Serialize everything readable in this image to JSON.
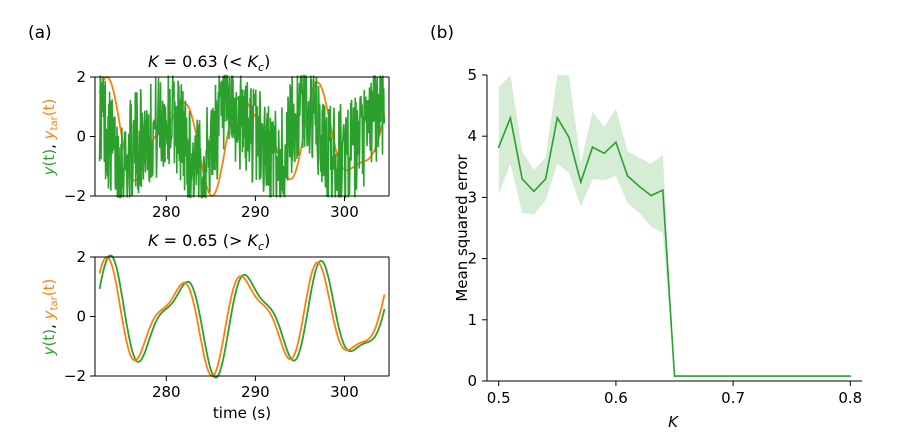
{
  "colors": {
    "green": "#2ca02c",
    "orange": "#ff7f0e",
    "band": "#2ca02c"
  },
  "panel_labels": {
    "a": "(a)",
    "b": "(b)"
  },
  "chart_data": [
    {
      "id": "a-top",
      "type": "line",
      "title": {
        "k_symbol": "K",
        "rest": " = 0.63 (< ",
        "kc_symbol": "K",
        "kc_sub": "c",
        "close": ")"
      },
      "ylabel": {
        "y": "y",
        "t1": "(t)",
        "sep": ", ",
        "ytar": "y",
        "tar_sub": "tar",
        "t2": "(t)"
      },
      "xlim": [
        272,
        305
      ],
      "ylim": [
        -2,
        2
      ],
      "xticks": [
        280,
        290,
        300
      ],
      "yticks": [
        -2,
        0,
        2
      ],
      "xtick_labels": [
        "280",
        "290",
        "300"
      ],
      "ytick_labels": [
        "−2",
        "0",
        "2"
      ],
      "series": [
        {
          "name": "y(t)",
          "color": "#2ca02c",
          "kind": "noisy",
          "x_start": 272.5,
          "x_end": 304.5
        },
        {
          "name": "y_tar(t)",
          "color": "#ff7f0e",
          "kind": "target",
          "x_start": 272.5,
          "x_end": 304.5
        }
      ]
    },
    {
      "id": "a-bottom",
      "type": "line",
      "title": {
        "k_symbol": "K",
        "rest": " = 0.65 (> ",
        "kc_symbol": "K",
        "kc_sub": "c",
        "close": ")"
      },
      "ylabel": {
        "y": "y",
        "t1": "(t)",
        "sep": ", ",
        "ytar": "y",
        "tar_sub": "tar",
        "t2": "(t)"
      },
      "xlabel": "time (s)",
      "xlim": [
        272,
        305
      ],
      "ylim": [
        -2,
        2
      ],
      "xticks": [
        280,
        290,
        300
      ],
      "yticks": [
        -2,
        0,
        2
      ],
      "xtick_labels": [
        "280",
        "290",
        "300"
      ],
      "ytick_labels": [
        "−2",
        "0",
        "2"
      ],
      "series": [
        {
          "name": "y(t)",
          "color": "#2ca02c",
          "kind": "tracking",
          "x_start": 272.5,
          "x_end": 304.5
        },
        {
          "name": "y_tar(t)",
          "color": "#ff7f0e",
          "kind": "target",
          "x_start": 272.5,
          "x_end": 304.5
        }
      ]
    },
    {
      "id": "b",
      "type": "line",
      "xlabel": "K",
      "ylabel": "Mean squared error",
      "xlim": [
        0.49,
        0.81
      ],
      "ylim": [
        0,
        5
      ],
      "xticks": [
        0.5,
        0.6,
        0.7,
        0.8
      ],
      "yticks": [
        0,
        1,
        2,
        3,
        4,
        5
      ],
      "xtick_labels": [
        "0.5",
        "0.6",
        "0.7",
        "0.8"
      ],
      "ytick_labels": [
        "0",
        "1",
        "2",
        "3",
        "4",
        "5"
      ],
      "series": [
        {
          "name": "Mean squared error",
          "color": "#2ca02c",
          "x": [
            0.5,
            0.51,
            0.52,
            0.53,
            0.54,
            0.55,
            0.56,
            0.57,
            0.58,
            0.59,
            0.6,
            0.61,
            0.62,
            0.63,
            0.64,
            0.65,
            0.8
          ],
          "y": [
            3.82,
            4.3,
            3.3,
            3.1,
            3.3,
            4.3,
            3.98,
            3.25,
            3.82,
            3.72,
            3.9,
            3.35,
            3.18,
            3.03,
            3.12,
            0.08,
            0.08
          ],
          "lower": [
            3.05,
            3.55,
            2.75,
            2.72,
            2.95,
            3.55,
            3.4,
            2.85,
            3.3,
            3.28,
            3.35,
            2.9,
            2.75,
            2.52,
            2.42,
            0.08,
            0.08
          ],
          "upper": [
            4.8,
            5.0,
            3.75,
            3.45,
            3.65,
            5.0,
            5.0,
            3.55,
            4.4,
            4.15,
            4.45,
            3.75,
            3.65,
            3.55,
            3.7,
            0.08,
            0.08
          ]
        }
      ]
    }
  ]
}
